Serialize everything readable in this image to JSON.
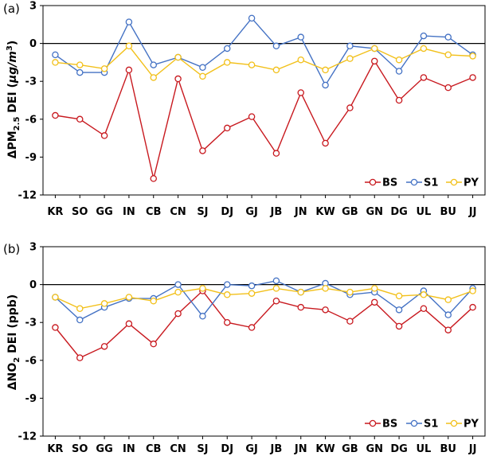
{
  "colors": {
    "BS": "#c8191f",
    "S1": "#4472c4",
    "PY": "#f2c01a",
    "axis": "#000000",
    "zero": "#000000"
  },
  "chart_data": [
    {
      "type": "line",
      "panel": "(a)",
      "ylabel_parts": [
        "ΔPM",
        "2.5",
        " DEI (",
        "μg/m",
        "3",
        ")"
      ],
      "ylim": [
        -12,
        3
      ],
      "yticks": [
        3,
        0,
        -3,
        -6,
        -9,
        -12
      ],
      "categories": [
        "KR",
        "SO",
        "GG",
        "IN",
        "CB",
        "CN",
        "SJ",
        "DJ",
        "GJ",
        "JB",
        "JN",
        "KW",
        "GB",
        "GN",
        "DG",
        "UL",
        "BU",
        "JJ"
      ],
      "series": [
        {
          "name": "BS",
          "values": [
            -5.7,
            -6.0,
            -7.3,
            -2.1,
            -10.7,
            -2.8,
            -8.5,
            -6.7,
            -5.8,
            -8.7,
            -3.9,
            -7.9,
            -5.1,
            -1.4,
            -4.5,
            -2.7,
            -3.5,
            -2.7
          ]
        },
        {
          "name": "S1",
          "values": [
            -0.9,
            -2.3,
            -2.3,
            1.7,
            -1.7,
            -1.1,
            -1.9,
            -0.4,
            2.0,
            -0.2,
            0.5,
            -3.3,
            -0.2,
            -0.4,
            -2.2,
            0.6,
            0.5,
            -0.9
          ]
        },
        {
          "name": "PY",
          "values": [
            -1.5,
            -1.7,
            -2.0,
            -0.2,
            -2.7,
            -1.1,
            -2.6,
            -1.5,
            -1.7,
            -2.1,
            -1.3,
            -2.1,
            -1.2,
            -0.4,
            -1.3,
            -0.4,
            -0.9,
            -1.0
          ]
        }
      ]
    },
    {
      "type": "line",
      "panel": "(b)",
      "ylabel_parts": [
        "ΔNO",
        "2",
        " DEI (ppb)"
      ],
      "ylim": [
        -12,
        3
      ],
      "yticks": [
        3,
        0,
        -3,
        -6,
        -9,
        -12
      ],
      "categories": [
        "KR",
        "SO",
        "GG",
        "IN",
        "CB",
        "CN",
        "SJ",
        "DJ",
        "GJ",
        "JB",
        "JN",
        "KW",
        "GB",
        "GN",
        "DG",
        "UL",
        "BU",
        "JJ"
      ],
      "series": [
        {
          "name": "BS",
          "values": [
            -3.4,
            -5.8,
            -4.9,
            -3.1,
            -4.7,
            -2.3,
            -0.5,
            -3.0,
            -3.4,
            -1.3,
            -1.8,
            -2.0,
            -2.9,
            -1.4,
            -3.3,
            -1.9,
            -3.6,
            -1.8
          ]
        },
        {
          "name": "S1",
          "values": [
            -1.0,
            -2.8,
            -1.8,
            -1.1,
            -1.1,
            0.0,
            -2.5,
            0.0,
            -0.1,
            0.3,
            -0.6,
            0.1,
            -0.8,
            -0.6,
            -2.0,
            -0.5,
            -2.4,
            -0.3
          ]
        },
        {
          "name": "PY",
          "values": [
            -1.0,
            -1.9,
            -1.5,
            -1.0,
            -1.3,
            -0.6,
            -0.3,
            -0.8,
            -0.7,
            -0.3,
            -0.6,
            -0.3,
            -0.6,
            -0.3,
            -0.9,
            -0.8,
            -1.2,
            -0.5
          ]
        }
      ]
    }
  ]
}
